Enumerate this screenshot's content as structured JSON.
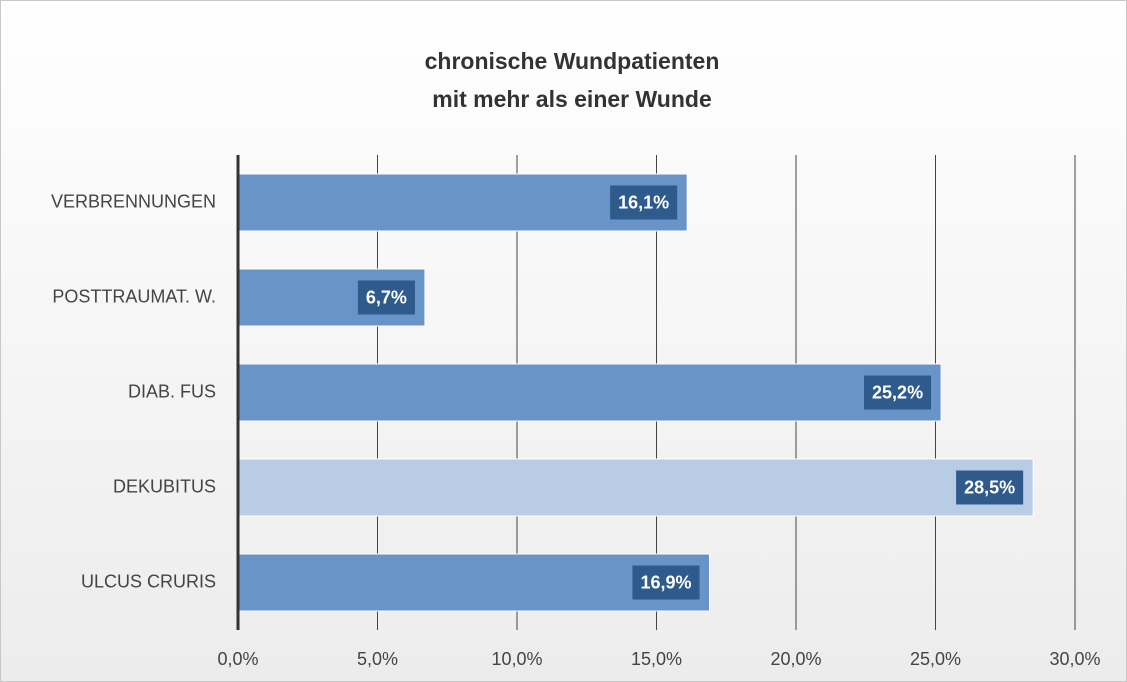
{
  "chart_data": {
    "type": "barh",
    "title": [
      "chronische Wundpatienten",
      "mit mehr als einer Wunde"
    ],
    "categories": [
      "VERBRENNUNGEN",
      "POSTTRAUMAT. W.",
      "DIAB. FUS",
      "DEKUBITUS",
      "ULCUS CRURIS"
    ],
    "values": [
      16.1,
      6.7,
      25.2,
      28.5,
      16.9
    ],
    "value_labels": [
      "16,1%",
      "6,7%",
      "25,2%",
      "28,5%",
      "16,9%"
    ],
    "colors": [
      "#6894c7",
      "#6894c7",
      "#6894c7",
      "#b8cce5",
      "#6894c7"
    ],
    "label_box_color": "#2e5a8c",
    "xlim": [
      0,
      30
    ],
    "xticks": [
      {
        "value": 0,
        "label": "0,0%"
      },
      {
        "value": 5,
        "label": "5,0%"
      },
      {
        "value": 10,
        "label": "10,0%"
      },
      {
        "value": 15,
        "label": "15,0%"
      },
      {
        "value": 20,
        "label": "20,0%"
      },
      {
        "value": 25,
        "label": "25,0%"
      },
      {
        "value": 30,
        "label": "30,0%"
      }
    ],
    "grid": true
  }
}
